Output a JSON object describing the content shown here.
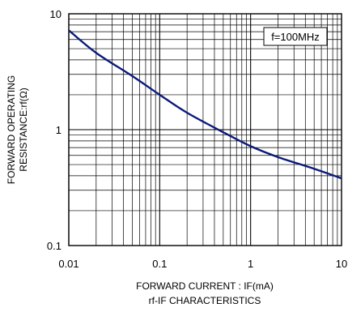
{
  "chart_data": {
    "type": "line",
    "title": "",
    "caption": "rf-IF CHARACTERISTICS",
    "xlabel": "FORWARD CURRENT : IF(mA)",
    "ylabel_lines": [
      "FORWARD OPERATING",
      "RESISTANCE:rf(Ω)"
    ],
    "x_scale": "log",
    "y_scale": "log",
    "xlim": [
      0.01,
      10
    ],
    "ylim": [
      0.1,
      10
    ],
    "x_ticks": [
      "0.01",
      "0.1",
      "1",
      "10"
    ],
    "y_ticks": [
      "10",
      "1",
      "0.1"
    ],
    "grid": true,
    "annotation": "f=100MHz",
    "series": [
      {
        "x": [
          0.01,
          0.02,
          0.05,
          0.1,
          0.2,
          0.5,
          1,
          2,
          5,
          10
        ],
        "y": [
          7.2,
          4.6,
          2.9,
          2.0,
          1.4,
          0.95,
          0.72,
          0.58,
          0.46,
          0.38
        ],
        "color": "#0b1a7a"
      }
    ]
  }
}
